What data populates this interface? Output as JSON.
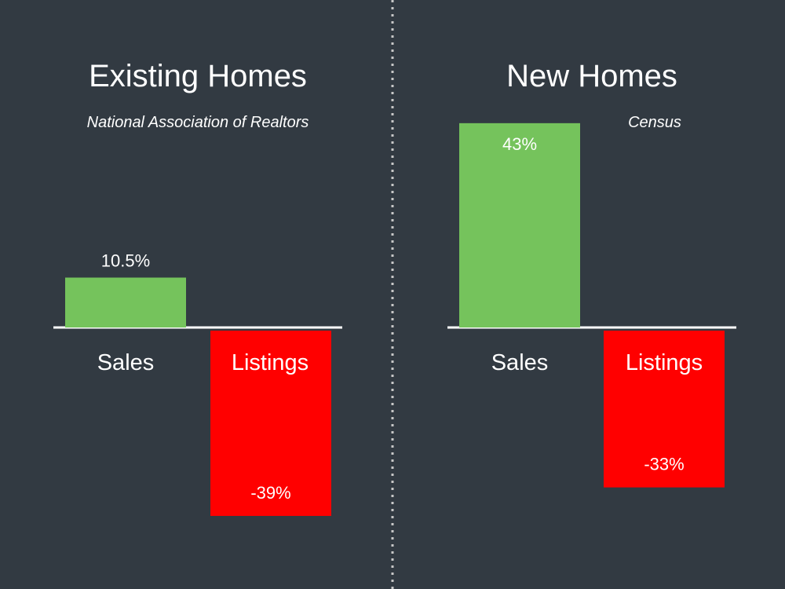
{
  "colors": {
    "background": "#323a42",
    "positive": "#75c35c",
    "negative": "#ff0000",
    "text": "#ffffff",
    "divider": "#c8c8c8"
  },
  "chart_data": [
    {
      "type": "bar",
      "title": "Existing Homes",
      "subtitle": "National Association of Realtors",
      "categories": [
        "Sales",
        "Listings"
      ],
      "values": [
        10.5,
        -39
      ],
      "value_labels": [
        "10.5%",
        "-39%"
      ],
      "unit": "%"
    },
    {
      "type": "bar",
      "title": "New Homes",
      "subtitle": "Census",
      "categories": [
        "Sales",
        "Listings"
      ],
      "values": [
        43,
        -33
      ],
      "value_labels": [
        "43%",
        "-33%"
      ],
      "unit": "%"
    }
  ]
}
